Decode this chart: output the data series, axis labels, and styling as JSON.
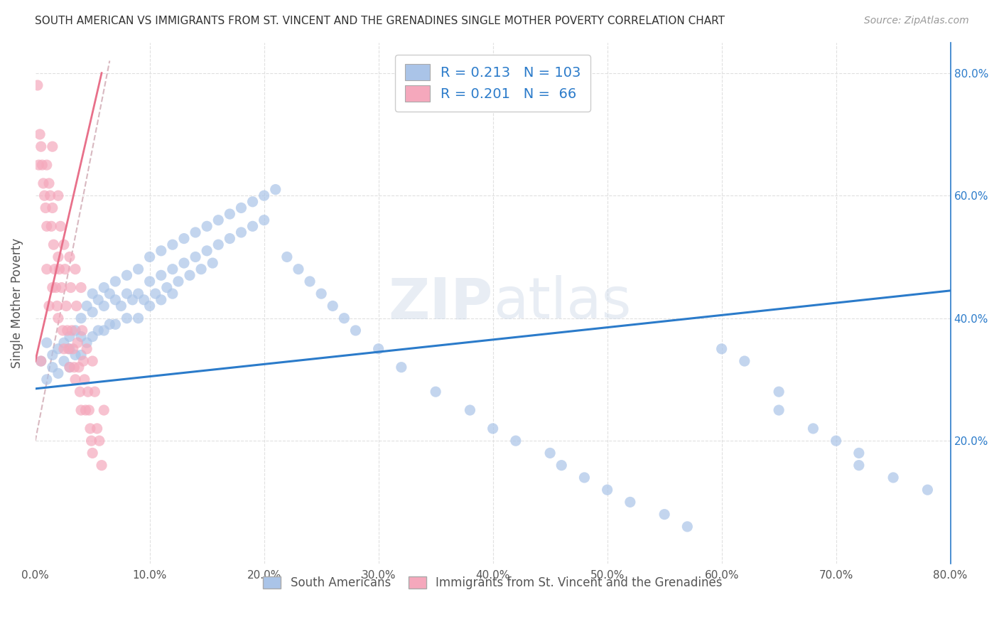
{
  "title": "SOUTH AMERICAN VS IMMIGRANTS FROM ST. VINCENT AND THE GRENADINES SINGLE MOTHER POVERTY CORRELATION CHART",
  "source": "Source: ZipAtlas.com",
  "ylabel": "Single Mother Poverty",
  "xlim": [
    0.0,
    0.8
  ],
  "ylim": [
    0.0,
    0.85
  ],
  "blue_R": 0.213,
  "blue_N": 103,
  "pink_R": 0.201,
  "pink_N": 66,
  "blue_color": "#aac4e8",
  "pink_color": "#f5a8bc",
  "blue_line_color": "#2b7bca",
  "pink_line_color": "#e8708a",
  "dashed_line_color": "#d8b8c0",
  "watermark": "ZIPatlas",
  "legend_label_blue": "South Americans",
  "legend_label_pink": "Immigrants from St. Vincent and the Grenadines",
  "blue_scatter_x": [
    0.005,
    0.01,
    0.01,
    0.015,
    0.015,
    0.02,
    0.02,
    0.025,
    0.025,
    0.03,
    0.03,
    0.03,
    0.035,
    0.035,
    0.04,
    0.04,
    0.04,
    0.045,
    0.045,
    0.05,
    0.05,
    0.05,
    0.055,
    0.055,
    0.06,
    0.06,
    0.06,
    0.065,
    0.065,
    0.07,
    0.07,
    0.07,
    0.075,
    0.08,
    0.08,
    0.08,
    0.085,
    0.09,
    0.09,
    0.09,
    0.095,
    0.1,
    0.1,
    0.1,
    0.105,
    0.11,
    0.11,
    0.11,
    0.115,
    0.12,
    0.12,
    0.12,
    0.125,
    0.13,
    0.13,
    0.135,
    0.14,
    0.14,
    0.145,
    0.15,
    0.15,
    0.155,
    0.16,
    0.16,
    0.17,
    0.17,
    0.18,
    0.18,
    0.19,
    0.19,
    0.2,
    0.2,
    0.21,
    0.22,
    0.23,
    0.24,
    0.25,
    0.26,
    0.27,
    0.28,
    0.3,
    0.32,
    0.35,
    0.38,
    0.4,
    0.42,
    0.45,
    0.46,
    0.48,
    0.5,
    0.52,
    0.55,
    0.57,
    0.6,
    0.62,
    0.65,
    0.65,
    0.68,
    0.7,
    0.72,
    0.72,
    0.75,
    0.78
  ],
  "blue_scatter_y": [
    0.33,
    0.36,
    0.3,
    0.34,
    0.32,
    0.35,
    0.31,
    0.36,
    0.33,
    0.37,
    0.35,
    0.32,
    0.38,
    0.34,
    0.4,
    0.37,
    0.34,
    0.42,
    0.36,
    0.44,
    0.41,
    0.37,
    0.43,
    0.38,
    0.45,
    0.42,
    0.38,
    0.44,
    0.39,
    0.46,
    0.43,
    0.39,
    0.42,
    0.47,
    0.44,
    0.4,
    0.43,
    0.48,
    0.44,
    0.4,
    0.43,
    0.5,
    0.46,
    0.42,
    0.44,
    0.51,
    0.47,
    0.43,
    0.45,
    0.52,
    0.48,
    0.44,
    0.46,
    0.53,
    0.49,
    0.47,
    0.54,
    0.5,
    0.48,
    0.55,
    0.51,
    0.49,
    0.56,
    0.52,
    0.57,
    0.53,
    0.58,
    0.54,
    0.59,
    0.55,
    0.6,
    0.56,
    0.61,
    0.5,
    0.48,
    0.46,
    0.44,
    0.42,
    0.4,
    0.38,
    0.35,
    0.32,
    0.28,
    0.25,
    0.22,
    0.2,
    0.18,
    0.16,
    0.14,
    0.12,
    0.1,
    0.08,
    0.06,
    0.35,
    0.33,
    0.28,
    0.25,
    0.22,
    0.2,
    0.18,
    0.16,
    0.14,
    0.12
  ],
  "pink_scatter_x": [
    0.002,
    0.003,
    0.004,
    0.005,
    0.005,
    0.006,
    0.007,
    0.008,
    0.009,
    0.01,
    0.01,
    0.01,
    0.012,
    0.012,
    0.013,
    0.014,
    0.015,
    0.015,
    0.015,
    0.016,
    0.017,
    0.018,
    0.019,
    0.02,
    0.02,
    0.02,
    0.021,
    0.022,
    0.023,
    0.024,
    0.025,
    0.025,
    0.026,
    0.027,
    0.028,
    0.029,
    0.03,
    0.03,
    0.031,
    0.032,
    0.033,
    0.034,
    0.035,
    0.035,
    0.036,
    0.037,
    0.038,
    0.039,
    0.04,
    0.04,
    0.041,
    0.042,
    0.043,
    0.044,
    0.045,
    0.046,
    0.047,
    0.048,
    0.049,
    0.05,
    0.05,
    0.052,
    0.054,
    0.056,
    0.058,
    0.06
  ],
  "pink_scatter_y": [
    0.78,
    0.65,
    0.7,
    0.68,
    0.33,
    0.65,
    0.62,
    0.6,
    0.58,
    0.65,
    0.55,
    0.48,
    0.62,
    0.42,
    0.6,
    0.55,
    0.68,
    0.58,
    0.45,
    0.52,
    0.48,
    0.45,
    0.42,
    0.6,
    0.5,
    0.4,
    0.48,
    0.55,
    0.45,
    0.38,
    0.52,
    0.35,
    0.48,
    0.42,
    0.38,
    0.35,
    0.5,
    0.32,
    0.45,
    0.38,
    0.35,
    0.32,
    0.48,
    0.3,
    0.42,
    0.36,
    0.32,
    0.28,
    0.45,
    0.25,
    0.38,
    0.33,
    0.3,
    0.25,
    0.35,
    0.28,
    0.25,
    0.22,
    0.2,
    0.33,
    0.18,
    0.28,
    0.22,
    0.2,
    0.16,
    0.25
  ]
}
